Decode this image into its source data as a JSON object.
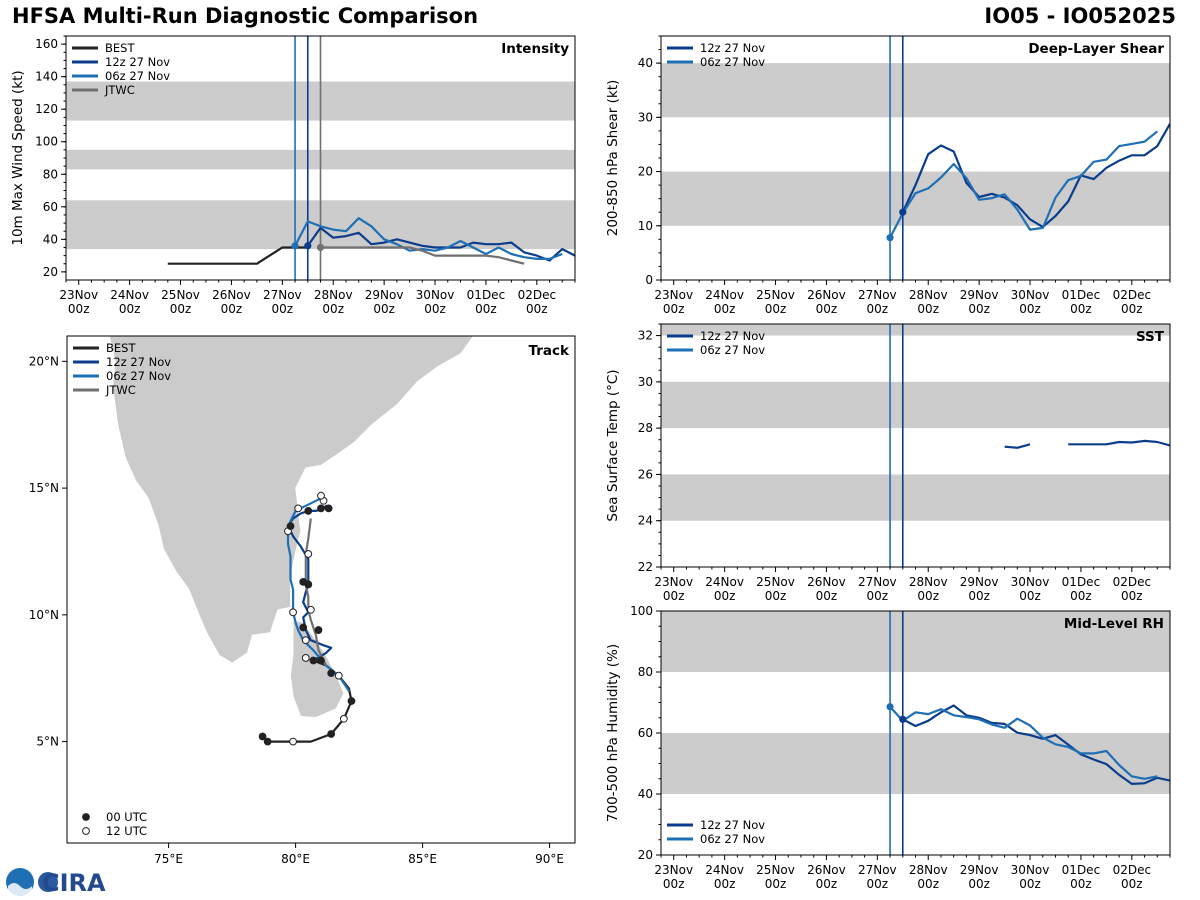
{
  "header": {
    "title": "HFSA Multi-Run Diagnostic Comparison",
    "storm": "IO05 - IO052025"
  },
  "logo": {
    "text": "CIRA"
  },
  "time_axis": {
    "ticks": [
      {
        "t": 0,
        "l1": "23Nov",
        "l2": "00z"
      },
      {
        "t": 24,
        "l1": "24Nov",
        "l2": "00z"
      },
      {
        "t": 48,
        "l1": "25Nov",
        "l2": "00z"
      },
      {
        "t": 72,
        "l1": "26Nov",
        "l2": "00z"
      },
      {
        "t": 96,
        "l1": "27Nov",
        "l2": "00z"
      },
      {
        "t": 120,
        "l1": "28Nov",
        "l2": "00z"
      },
      {
        "t": 144,
        "l1": "29Nov",
        "l2": "00z"
      },
      {
        "t": 168,
        "l1": "30Nov",
        "l2": "00z"
      },
      {
        "t": 192,
        "l1": "01Dec",
        "l2": "00z"
      },
      {
        "t": 216,
        "l1": "02Dec",
        "l2": "00z"
      }
    ],
    "xlim_hours": [
      -6,
      234
    ],
    "note": "hours since 23 Nov 00z"
  },
  "colors": {
    "best": "#222222",
    "run12z": "#0b3d8c",
    "run06z": "#1f6fb5",
    "jtwc": "#707070",
    "band": "#cccccc",
    "land": "#cbcbcb"
  },
  "chart_data": [
    {
      "id": "intensity",
      "type": "line",
      "title": "Intensity",
      "ylabel": "10m Max Wind Speed (kt)",
      "ylim": [
        15,
        165
      ],
      "yticks": [
        20,
        40,
        60,
        80,
        100,
        120,
        140,
        160
      ],
      "bands": [
        [
          34,
          64
        ],
        [
          83,
          95
        ],
        [
          113,
          137
        ]
      ],
      "vlines": [
        {
          "t": 102,
          "series": "06z 27 Nov"
        },
        {
          "t": 108,
          "series": "12z 27 Nov"
        },
        {
          "t": 114,
          "series": "JTWC"
        }
      ],
      "legend": [
        "BEST",
        "12z 27 Nov",
        "06z 27 Nov",
        "JTWC"
      ],
      "series": [
        {
          "name": "BEST",
          "key": "best",
          "x": [
            42,
            48,
            54,
            60,
            66,
            72,
            78,
            84,
            90,
            96,
            102,
            108
          ],
          "y": [
            25,
            25,
            25,
            25,
            25,
            25,
            25,
            25,
            30,
            35,
            35,
            35
          ]
        },
        {
          "name": "12z 27 Nov",
          "key": "run12z",
          "x": [
            108,
            114,
            120,
            126,
            132,
            138,
            144,
            150,
            156,
            162,
            168,
            174,
            180,
            186,
            192,
            198,
            204,
            210,
            216,
            222,
            228,
            234
          ],
          "y": [
            36,
            47,
            41,
            42,
            44,
            37,
            38,
            40,
            38,
            36,
            35,
            35,
            35,
            38,
            37,
            37,
            38,
            32,
            30,
            27,
            34,
            30
          ]
        },
        {
          "name": "06z 27 Nov",
          "key": "run06z",
          "x": [
            102,
            108,
            114,
            120,
            126,
            132,
            138,
            144,
            150,
            156,
            162,
            168,
            174,
            180,
            186,
            192,
            198,
            204,
            210,
            216,
            222,
            228
          ],
          "y": [
            36,
            51,
            48,
            46,
            45,
            53,
            48,
            40,
            37,
            33,
            34,
            33,
            35,
            39,
            35,
            31,
            35,
            31,
            29,
            28,
            28,
            31
          ]
        },
        {
          "name": "JTWC",
          "key": "jtwc",
          "x": [
            114,
            120,
            126,
            132,
            138,
            144,
            150,
            156,
            162,
            168,
            174,
            180,
            186,
            192,
            198,
            204,
            210
          ],
          "y": [
            35,
            35,
            35,
            35,
            35,
            35,
            35,
            35,
            33,
            30,
            30,
            30,
            30,
            30,
            29,
            27,
            25
          ]
        }
      ],
      "markers": [
        {
          "key": "run06z",
          "t": 102,
          "v": 36
        },
        {
          "key": "run12z",
          "t": 108,
          "v": 36
        },
        {
          "key": "jtwc",
          "t": 114,
          "v": 35
        }
      ]
    },
    {
      "id": "shear",
      "type": "line",
      "title": "Deep-Layer Shear",
      "ylabel": "200-850 hPa Shear (kt)",
      "ylim": [
        0,
        45
      ],
      "yticks": [
        0,
        10,
        20,
        30,
        40
      ],
      "bands": [
        [
          10,
          20
        ],
        [
          30,
          40
        ]
      ],
      "vlines": [
        {
          "t": 102,
          "series": "06z 27 Nov"
        },
        {
          "t": 108,
          "series": "12z 27 Nov"
        }
      ],
      "legend": [
        "12z 27 Nov",
        "06z 27 Nov"
      ],
      "series": [
        {
          "name": "12z 27 Nov",
          "key": "run12z",
          "x": [
            108,
            114,
            120,
            126,
            132,
            138,
            144,
            150,
            156,
            162,
            168,
            174,
            180,
            186,
            192,
            198,
            204,
            210,
            216,
            222,
            228,
            234
          ],
          "y": [
            12.5,
            17.5,
            23.2,
            24.8,
            23.7,
            17.9,
            15.3,
            15.9,
            15.2,
            13.8,
            11.2,
            9.8,
            11.8,
            14.5,
            19.3,
            18.6,
            20.7,
            22.0,
            23.0,
            23.0,
            24.7,
            28.8
          ]
        },
        {
          "name": "06z 27 Nov",
          "key": "run06z",
          "x": [
            102,
            108,
            114,
            120,
            126,
            132,
            138,
            144,
            150,
            156,
            162,
            168,
            174,
            180,
            186,
            192,
            198,
            204,
            210,
            216,
            222,
            228
          ],
          "y": [
            7.8,
            12.3,
            16.0,
            16.9,
            18.9,
            21.4,
            18.8,
            14.8,
            15.1,
            15.8,
            13.0,
            9.3,
            9.6,
            15.2,
            18.4,
            19.2,
            21.8,
            22.2,
            24.7,
            25.1,
            25.5,
            27.4
          ]
        }
      ],
      "markers": [
        {
          "key": "run06z",
          "t": 102,
          "v": 7.8
        },
        {
          "key": "run12z",
          "t": 108,
          "v": 12.5
        }
      ]
    },
    {
      "id": "sst",
      "type": "line",
      "title": "SST",
      "ylabel": "Sea Surface Temp (°C)",
      "ylim": [
        22,
        32.5
      ],
      "yticks": [
        22,
        24,
        26,
        28,
        30,
        32
      ],
      "bands": [
        [
          24,
          26
        ],
        [
          28,
          30
        ],
        [
          32,
          32.5
        ]
      ],
      "vlines": [
        {
          "t": 102,
          "series": "06z 27 Nov"
        },
        {
          "t": 108,
          "series": "12z 27 Nov"
        }
      ],
      "legend": [
        "12z 27 Nov",
        "06z 27 Nov"
      ],
      "series": [
        {
          "name": "12z 27 Nov",
          "key": "run12z",
          "x": [
            156,
            162,
            168,
            null,
            186,
            192,
            198,
            204,
            210,
            216,
            222,
            228,
            234
          ],
          "y": [
            27.2,
            27.15,
            27.3,
            null,
            27.3,
            27.3,
            27.3,
            27.3,
            27.4,
            27.38,
            27.45,
            27.4,
            27.25
          ]
        }
      ]
    },
    {
      "id": "rh",
      "type": "line",
      "title": "Mid-Level RH",
      "ylabel": "700-500 hPa Humidity (%)",
      "ylim": [
        20,
        100
      ],
      "yticks": [
        20,
        40,
        60,
        80,
        100
      ],
      "bands": [
        [
          40,
          60
        ],
        [
          80,
          100
        ]
      ],
      "vlines": [
        {
          "t": 102,
          "series": "06z 27 Nov"
        },
        {
          "t": 108,
          "series": "12z 27 Nov"
        }
      ],
      "legend": [
        "12z 27 Nov",
        "06z 27 Nov"
      ],
      "legend_loc": "lower-left",
      "series": [
        {
          "name": "12z 27 Nov",
          "key": "run12z",
          "x": [
            108,
            114,
            120,
            126,
            132,
            138,
            144,
            150,
            156,
            162,
            168,
            174,
            180,
            186,
            192,
            198,
            204,
            210,
            216,
            222,
            228,
            234
          ],
          "y": [
            64.5,
            62.3,
            64.0,
            66.8,
            69.0,
            65.8,
            65.0,
            63.3,
            63.0,
            60.1,
            59.3,
            58.1,
            59.3,
            56.2,
            53.0,
            51.3,
            49.8,
            46.3,
            43.3,
            43.5,
            45.3,
            44.4
          ]
        },
        {
          "name": "06z 27 Nov",
          "key": "run06z",
          "x": [
            102,
            108,
            114,
            120,
            126,
            132,
            138,
            144,
            150,
            156,
            162,
            168,
            174,
            180,
            186,
            192,
            198,
            204,
            210,
            216,
            222,
            228
          ],
          "y": [
            68.6,
            64.0,
            66.8,
            66.2,
            67.8,
            65.8,
            65.2,
            64.5,
            62.8,
            61.7,
            64.7,
            62.5,
            58.5,
            56.3,
            55.4,
            53.3,
            53.3,
            54.1,
            49.5,
            45.8,
            45.0,
            45.8
          ]
        }
      ],
      "markers": [
        {
          "key": "run06z",
          "t": 102,
          "v": 68.6
        },
        {
          "key": "run12z",
          "t": 108,
          "v": 64.5
        }
      ]
    },
    {
      "id": "track",
      "type": "map",
      "title": "Track",
      "xlim": [
        71,
        91
      ],
      "ylim": [
        1,
        21
      ],
      "xticks": [
        75,
        80,
        85,
        90
      ],
      "yticks": [
        5,
        10,
        15,
        20
      ],
      "xticklabels": [
        "75°E",
        "80°E",
        "85°E",
        "90°E"
      ],
      "yticklabels": [
        "5°N",
        "10°N",
        "15°N",
        "20°N"
      ],
      "legend": [
        "BEST",
        "12z 27 Nov",
        "06z 27 Nov",
        "JTWC"
      ],
      "marker_legend": [
        "00 UTC",
        "12 UTC"
      ],
      "series": [
        {
          "name": "BEST",
          "key": "best",
          "lon": [
            78.7,
            78.9,
            79.9,
            80.6,
            81.4,
            81.9,
            82.2,
            82.1,
            81.7,
            81.2,
            80.7
          ],
          "lat": [
            5.2,
            5.0,
            5.0,
            5.0,
            5.3,
            5.9,
            6.6,
            7.1,
            7.6,
            8.0,
            8.2
          ]
        },
        {
          "name": "12z 27 Nov",
          "key": "run12z",
          "lon": [
            80.7,
            81.2,
            81.4,
            81.1,
            80.6,
            80.4,
            80.3,
            80.5,
            80.3,
            80.4,
            80.5,
            80.5,
            80.2,
            79.9,
            79.7,
            79.9,
            80.2,
            80.5,
            80.8,
            81.1,
            81.2,
            81.4
          ],
          "lat": [
            8.2,
            8.5,
            8.7,
            8.8,
            9.0,
            9.4,
            9.9,
            10.1,
            10.5,
            10.9,
            11.2,
            12.2,
            12.7,
            13.1,
            13.5,
            13.8,
            14.0,
            14.1,
            14.1,
            14.2,
            14.3,
            14.2
          ]
        },
        {
          "name": "06z 27 Nov",
          "key": "run06z",
          "lon": [
            82.1,
            81.7,
            81.2,
            80.7,
            80.3,
            80.1,
            80.0,
            79.9,
            79.9,
            79.9,
            79.8,
            79.8,
            79.8,
            79.7,
            79.7,
            79.8,
            80.0,
            80.4,
            80.8,
            81.0,
            81.0,
            81.0
          ],
          "lat": [
            7.0,
            7.6,
            8.0,
            8.6,
            9.0,
            9.4,
            9.7,
            10.1,
            10.6,
            11.0,
            11.4,
            11.8,
            12.3,
            12.8,
            13.3,
            13.7,
            14.1,
            14.3,
            14.5,
            14.6,
            14.7,
            14.8
          ]
        },
        {
          "name": "JTWC",
          "key": "jtwc",
          "lon": [
            81.2,
            80.9,
            80.8,
            80.6,
            80.5,
            80.5,
            80.4,
            80.4,
            80.4,
            80.5,
            80.6
          ],
          "lat": [
            8.0,
            8.6,
            9.2,
            9.8,
            10.2,
            10.7,
            11.2,
            11.8,
            12.4,
            13.0,
            13.8
          ]
        }
      ],
      "points": [
        {
          "lon": 78.7,
          "lat": 5.2,
          "utc": "00"
        },
        {
          "lon": 78.9,
          "lat": 5.0,
          "utc": "00"
        },
        {
          "lon": 79.9,
          "lat": 5.0,
          "utc": "12"
        },
        {
          "lon": 81.4,
          "lat": 5.3,
          "utc": "00"
        },
        {
          "lon": 81.9,
          "lat": 5.9,
          "utc": "12"
        },
        {
          "lon": 82.2,
          "lat": 6.6,
          "utc": "00"
        },
        {
          "lon": 81.7,
          "lat": 7.6,
          "utc": "12"
        },
        {
          "lon": 81.4,
          "lat": 7.7,
          "utc": "00"
        },
        {
          "lon": 80.7,
          "lat": 8.2,
          "utc": "00"
        },
        {
          "lon": 80.4,
          "lat": 8.3,
          "utc": "12"
        },
        {
          "lon": 81.0,
          "lat": 8.2,
          "utc": "00"
        },
        {
          "lon": 80.4,
          "lat": 9.0,
          "utc": "12"
        },
        {
          "lon": 80.3,
          "lat": 9.5,
          "utc": "00"
        },
        {
          "lon": 80.9,
          "lat": 9.4,
          "utc": "00"
        },
        {
          "lon": 79.9,
          "lat": 10.1,
          "utc": "12"
        },
        {
          "lon": 80.6,
          "lat": 10.2,
          "utc": "12"
        },
        {
          "lon": 80.3,
          "lat": 11.3,
          "utc": "00"
        },
        {
          "lon": 80.5,
          "lat": 11.2,
          "utc": "00"
        },
        {
          "lon": 80.5,
          "lat": 12.4,
          "utc": "12"
        },
        {
          "lon": 79.7,
          "lat": 13.3,
          "utc": "12"
        },
        {
          "lon": 79.8,
          "lat": 13.5,
          "utc": "00"
        },
        {
          "lon": 80.1,
          "lat": 14.2,
          "utc": "12"
        },
        {
          "lon": 80.5,
          "lat": 14.1,
          "utc": "00"
        },
        {
          "lon": 81.0,
          "lat": 14.2,
          "utc": "00"
        },
        {
          "lon": 81.3,
          "lat": 14.2,
          "utc": "00"
        },
        {
          "lon": 81.1,
          "lat": 14.5,
          "utc": "12"
        },
        {
          "lon": 81.0,
          "lat": 14.7,
          "utc": "12"
        }
      ]
    }
  ]
}
